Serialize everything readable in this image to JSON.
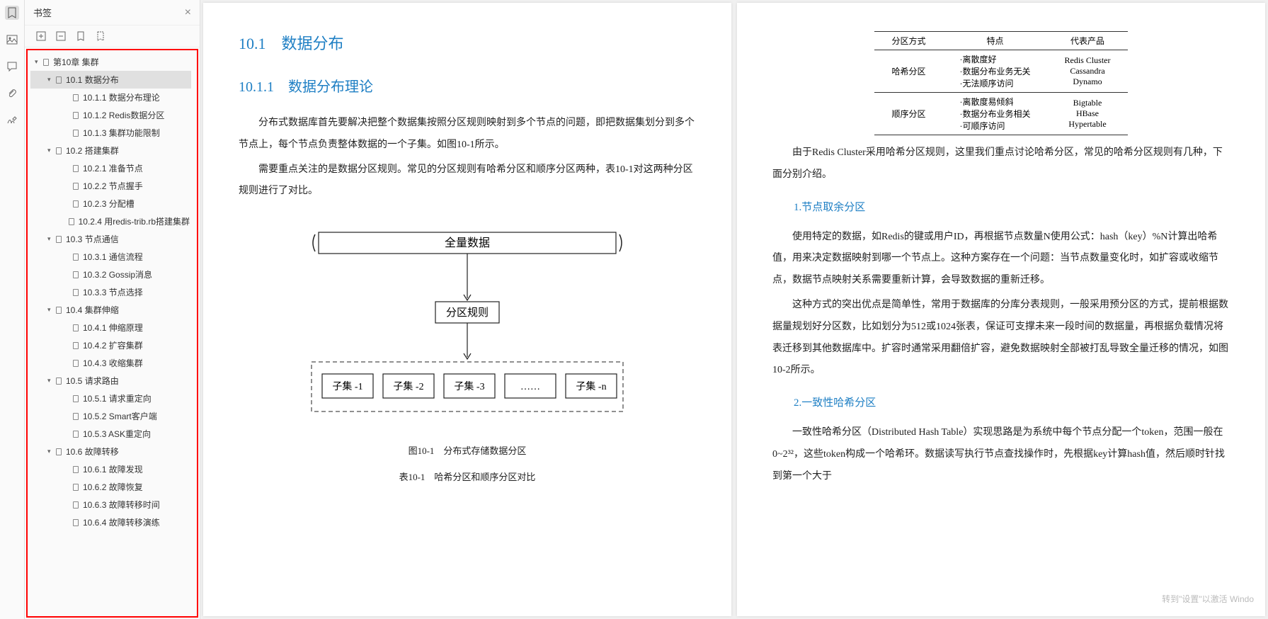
{
  "sidebar": {
    "title": "书签",
    "outline": [
      {
        "level": 0,
        "arrow": "▾",
        "label": "第10章 集群"
      },
      {
        "level": 1,
        "arrow": "▾",
        "label": "10.1 数据分布",
        "selected": true
      },
      {
        "level": 2,
        "arrow": "",
        "label": "10.1.1 数据分布理论"
      },
      {
        "level": 2,
        "arrow": "",
        "label": "10.1.2 Redis数据分区"
      },
      {
        "level": 2,
        "arrow": "",
        "label": "10.1.3 集群功能限制"
      },
      {
        "level": 1,
        "arrow": "▾",
        "label": "10.2 搭建集群"
      },
      {
        "level": 2,
        "arrow": "",
        "label": "10.2.1 准备节点"
      },
      {
        "level": 2,
        "arrow": "",
        "label": "10.2.2 节点握手"
      },
      {
        "level": 2,
        "arrow": "",
        "label": "10.2.3 分配槽"
      },
      {
        "level": 2,
        "arrow": "",
        "label": "10.2.4 用redis-trib.rb搭建集群"
      },
      {
        "level": 1,
        "arrow": "▾",
        "label": "10.3 节点通信"
      },
      {
        "level": 2,
        "arrow": "",
        "label": "10.3.1 通信流程"
      },
      {
        "level": 2,
        "arrow": "",
        "label": "10.3.2 Gossip消息"
      },
      {
        "level": 2,
        "arrow": "",
        "label": "10.3.3 节点选择"
      },
      {
        "level": 1,
        "arrow": "▾",
        "label": "10.4 集群伸缩"
      },
      {
        "level": 2,
        "arrow": "",
        "label": "10.4.1 伸缩原理"
      },
      {
        "level": 2,
        "arrow": "",
        "label": "10.4.2 扩容集群"
      },
      {
        "level": 2,
        "arrow": "",
        "label": "10.4.3 收缩集群"
      },
      {
        "level": 1,
        "arrow": "▾",
        "label": "10.5 请求路由"
      },
      {
        "level": 2,
        "arrow": "",
        "label": "10.5.1 请求重定向"
      },
      {
        "level": 2,
        "arrow": "",
        "label": "10.5.2 Smart客户端"
      },
      {
        "level": 2,
        "arrow": "",
        "label": "10.5.3 ASK重定向"
      },
      {
        "level": 1,
        "arrow": "▾",
        "label": "10.6 故障转移"
      },
      {
        "level": 2,
        "arrow": "",
        "label": "10.6.1 故障发现"
      },
      {
        "level": 2,
        "arrow": "",
        "label": "10.6.2 故障恢复"
      },
      {
        "level": 2,
        "arrow": "",
        "label": "10.6.3 故障转移时间"
      },
      {
        "level": 2,
        "arrow": "",
        "label": "10.6.4 故障转移演练"
      }
    ]
  },
  "pageLeft": {
    "h2": "10.1　数据分布",
    "h3": "10.1.1　数据分布理论",
    "p1": "分布式数据库首先要解决把整个数据集按照分区规则映射到多个节点的问题，即把数据集划分到多个节点上，每个节点负责整体数据的一个子集。如图10-1所示。",
    "p2": "需要重点关注的是数据分区规则。常见的分区规则有哈希分区和顺序分区两种，表10-1对这两种分区规则进行了对比。",
    "diagram": {
      "top_label": "全量数据",
      "mid_label": "分区规则",
      "subsets": [
        "子集 -1",
        "子集 -2",
        "子集 -3",
        "……",
        "子集 -n"
      ],
      "font_family": "KaiTi,STKaiti,serif",
      "stroke": "#222"
    },
    "caption1": "图10-1　分布式存储数据分区",
    "caption2": "表10-1　哈希分区和顺序分区对比"
  },
  "pageRight": {
    "table": {
      "headers": [
        "分区方式",
        "特点",
        "代表产品"
      ],
      "rows": [
        {
          "c1": "哈希分区",
          "c2": [
            "·离散度好",
            "·数据分布业务无关",
            "·无法顺序访问"
          ],
          "c3": [
            "Redis Cluster",
            "Cassandra",
            "Dynamo"
          ]
        },
        {
          "c1": "顺序分区",
          "c2": [
            "·离散度易倾斜",
            "·数据分布业务相关",
            "·可顺序访问"
          ],
          "c3": [
            "Bigtable",
            "HBase",
            "Hypertable"
          ]
        }
      ]
    },
    "p1": "由于Redis Cluster采用哈希分区规则，这里我们重点讨论哈希分区，常见的哈希分区规则有几种，下面分别介绍。",
    "h4a": "1.节点取余分区",
    "p2": "使用特定的数据，如Redis的键或用户ID，再根据节点数量N使用公式：hash（key）%N计算出哈希值，用来决定数据映射到哪一个节点上。这种方案存在一个问题：当节点数量变化时，如扩容或收缩节点，数据节点映射关系需要重新计算，会导致数据的重新迁移。",
    "p3": "这种方式的突出优点是简单性，常用于数据库的分库分表规则，一般采用预分区的方式，提前根据数据量规划好分区数，比如划分为512或1024张表，保证可支撑未来一段时间的数据量，再根据负载情况将表迁移到其他数据库中。扩容时通常采用翻倍扩容，避免数据映射全部被打乱导致全量迁移的情况，如图10-2所示。",
    "h4b": "2.一致性哈希分区",
    "p4": "一致性哈希分区（Distributed Hash Table）实现思路是为系统中每个节点分配一个token，范围一般在0~2³²，这些token构成一个哈希环。数据读写执行节点查找操作时，先根据key计算hash值，然后顺时针找到第一个大于"
  },
  "watermark": "转到\"设置\"以激活 Windo"
}
